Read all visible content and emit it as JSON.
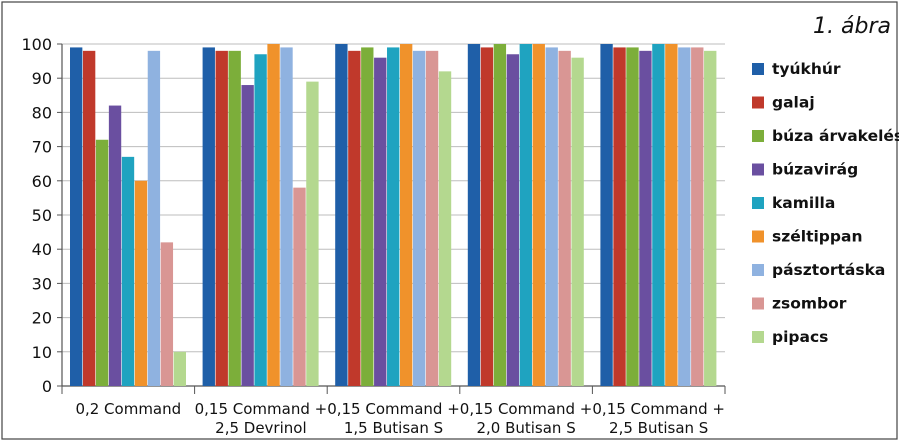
{
  "figure_label": "1. ábra",
  "chart_data": {
    "type": "bar",
    "categories": [
      [
        "0,2 Command"
      ],
      [
        "0,15 Command +",
        "2,5 Devrinol"
      ],
      [
        "0,15 Command +",
        "1,5 Butisan S"
      ],
      [
        "0,15 Command +",
        "2,0 Butisan S"
      ],
      [
        "0,15 Command +",
        "2,5 Butisan S"
      ]
    ],
    "ylim": [
      0,
      100
    ],
    "yticks": [
      0,
      10,
      20,
      30,
      40,
      50,
      60,
      70,
      80,
      90,
      100
    ],
    "grid": true,
    "legend_position": "right",
    "series": [
      {
        "name": "tyúkhúr",
        "color": "#1f5fa8",
        "values": [
          99,
          99,
          100,
          100,
          100
        ]
      },
      {
        "name": "galaj",
        "color": "#c0392b",
        "values": [
          98,
          98,
          98,
          99,
          99
        ]
      },
      {
        "name": "búza árvakelés",
        "color": "#7cae3a",
        "values": [
          72,
          98,
          99,
          100,
          99
        ]
      },
      {
        "name": "búzavirág",
        "color": "#6a4fa0",
        "values": [
          82,
          88,
          96,
          97,
          98
        ]
      },
      {
        "name": "kamilla",
        "color": "#1fa3c0",
        "values": [
          67,
          97,
          99,
          100,
          100
        ]
      },
      {
        "name": "széltippan",
        "color": "#f0922b",
        "values": [
          60,
          100,
          100,
          100,
          100
        ]
      },
      {
        "name": "pásztortáska",
        "color": "#8fb2e0",
        "values": [
          98,
          99,
          98,
          99,
          99
        ]
      },
      {
        "name": "zsombor",
        "color": "#d99694",
        "values": [
          42,
          58,
          98,
          98,
          99
        ]
      },
      {
        "name": "pipacs",
        "color": "#b4d88f",
        "values": [
          10,
          89,
          92,
          96,
          98
        ]
      }
    ]
  }
}
